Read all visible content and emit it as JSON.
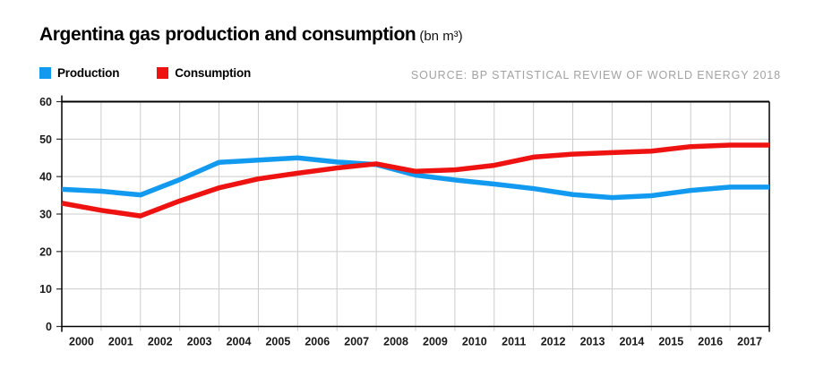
{
  "header": {
    "title": "Argentina gas production and consumption",
    "unit": "(bn m³)"
  },
  "legend": [
    {
      "label": "Production",
      "color": "#129af0"
    },
    {
      "label": "Consumption",
      "color": "#ee1211"
    }
  ],
  "source": "SOURCE: BP STATISTICAL REVIEW OF WORLD ENERGY 2018",
  "chart_data": {
    "type": "line",
    "title": "Argentina gas production and consumption",
    "unit": "bn m³",
    "x": [
      2000,
      2001,
      2002,
      2003,
      2004,
      2005,
      2006,
      2007,
      2008,
      2009,
      2010,
      2011,
      2012,
      2013,
      2014,
      2015,
      2016,
      2017
    ],
    "series": [
      {
        "name": "Production",
        "color": "#129af0",
        "values": [
          36.6,
          36.1,
          35.1,
          39.2,
          43.8,
          44.4,
          45.0,
          43.9,
          43.2,
          40.4,
          39.1,
          38.0,
          36.8,
          35.2,
          34.4,
          34.9,
          36.3,
          37.2
        ]
      },
      {
        "name": "Consumption",
        "color": "#ee1211",
        "values": [
          32.9,
          31.0,
          29.5,
          33.5,
          37.0,
          39.4,
          40.9,
          42.3,
          43.4,
          41.4,
          41.8,
          43.0,
          45.2,
          46.0,
          46.4,
          46.8,
          48.0,
          48.4
        ]
      }
    ],
    "ylim": [
      0,
      60
    ],
    "ytick_step": 10,
    "yticks": [
      0,
      10,
      20,
      30,
      40,
      50,
      60
    ],
    "grid": true,
    "legend_position": "top-left",
    "grid_color": "#cccccc",
    "axis_color": "#000000",
    "label_color": "#1a1a1a"
  }
}
